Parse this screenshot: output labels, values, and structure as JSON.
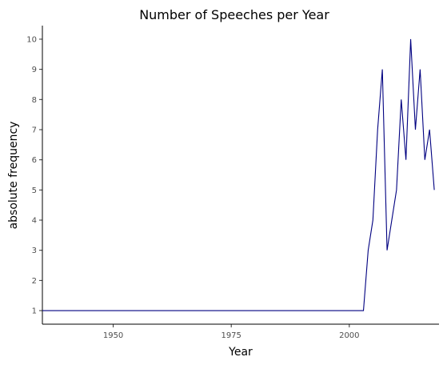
{
  "chart_data": {
    "type": "line",
    "title": "Number of Speeches per Year",
    "xlabel": "Year",
    "ylabel": "absolute frequency",
    "xlim": [
      1935,
      2019
    ],
    "ylim": [
      0.55,
      10.45
    ],
    "x_ticks": [
      1950,
      1975,
      2000
    ],
    "y_ticks": [
      1,
      2,
      3,
      4,
      5,
      6,
      7,
      8,
      9,
      10
    ],
    "grid": false,
    "line_color": "#000080",
    "series": [
      {
        "x": [
          1935,
          2003,
          2004,
          2005,
          2006,
          2007,
          2008,
          2009,
          2010,
          2011,
          2012,
          2013,
          2014,
          2015,
          2016,
          2017,
          2018
        ],
        "y": [
          1,
          1,
          3,
          4,
          7,
          9,
          3,
          4,
          5,
          8,
          6,
          10,
          7,
          9,
          6,
          7,
          5
        ]
      }
    ]
  }
}
